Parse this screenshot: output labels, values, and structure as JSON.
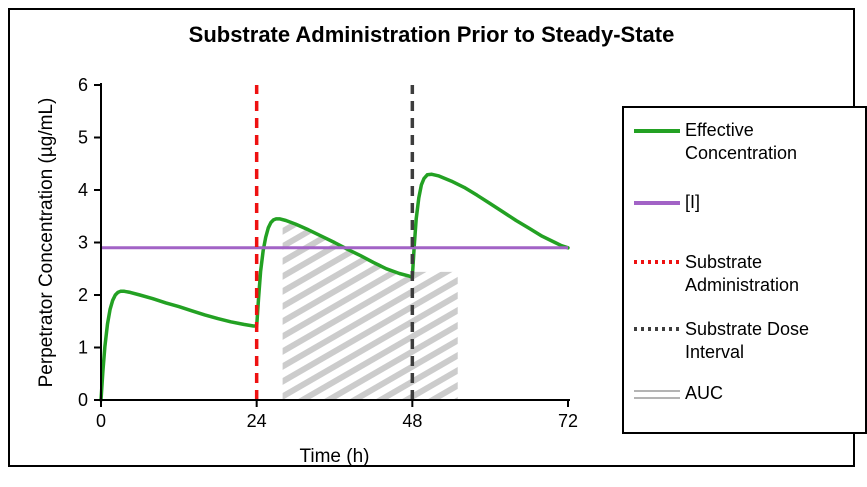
{
  "chart_data": {
    "type": "line",
    "title": "Substrate Administration Prior to Steady-State",
    "xlabel": "Time (h)",
    "ylabel": "Perpetrator Concentration (µg/mL)",
    "xlim": [
      0,
      72
    ],
    "ylim": [
      0,
      6
    ],
    "xticks": [
      0,
      24,
      48,
      72
    ],
    "yticks": [
      0,
      1,
      2,
      3,
      4,
      5,
      6
    ],
    "grid": false,
    "legend_position": "right",
    "series": [
      {
        "name": "Effective Concentration",
        "type": "line",
        "color": "#23a123",
        "width": 3.5,
        "points": [
          [
            0,
            0
          ],
          [
            0.3,
            0.55
          ],
          [
            0.6,
            1.02
          ],
          [
            1,
            1.45
          ],
          [
            1.4,
            1.73
          ],
          [
            1.8,
            1.9
          ],
          [
            2.2,
            2.0
          ],
          [
            2.6,
            2.05
          ],
          [
            3,
            2.07
          ],
          [
            3.6,
            2.07
          ],
          [
            4.5,
            2.05
          ],
          [
            6,
            2.0
          ],
          [
            8,
            1.93
          ],
          [
            10,
            1.85
          ],
          [
            12,
            1.78
          ],
          [
            14,
            1.7
          ],
          [
            16,
            1.62
          ],
          [
            18,
            1.55
          ],
          [
            20,
            1.49
          ],
          [
            22,
            1.44
          ],
          [
            23.5,
            1.41
          ],
          [
            24,
            1.41
          ],
          [
            24.3,
            1.95
          ],
          [
            24.6,
            2.45
          ],
          [
            25,
            2.85
          ],
          [
            25.4,
            3.1
          ],
          [
            25.8,
            3.28
          ],
          [
            26.2,
            3.38
          ],
          [
            26.6,
            3.43
          ],
          [
            27,
            3.45
          ],
          [
            27.6,
            3.45
          ],
          [
            28.5,
            3.42
          ],
          [
            30,
            3.35
          ],
          [
            32,
            3.24
          ],
          [
            34,
            3.12
          ],
          [
            36,
            3.0
          ],
          [
            38,
            2.87
          ],
          [
            40,
            2.75
          ],
          [
            42,
            2.62
          ],
          [
            44,
            2.5
          ],
          [
            46,
            2.41
          ],
          [
            47.5,
            2.36
          ],
          [
            48,
            2.34
          ],
          [
            48.3,
            2.95
          ],
          [
            48.6,
            3.45
          ],
          [
            49,
            3.85
          ],
          [
            49.4,
            4.1
          ],
          [
            49.8,
            4.22
          ],
          [
            50.3,
            4.29
          ],
          [
            51,
            4.3
          ],
          [
            52,
            4.27
          ],
          [
            54,
            4.17
          ],
          [
            56,
            4.05
          ],
          [
            58,
            3.9
          ],
          [
            60,
            3.74
          ],
          [
            62,
            3.58
          ],
          [
            64,
            3.42
          ],
          [
            66,
            3.27
          ],
          [
            68,
            3.12
          ],
          [
            70,
            3.0
          ],
          [
            71,
            2.94
          ],
          [
            72,
            2.9
          ]
        ]
      },
      {
        "name": "[I]",
        "type": "hline",
        "color": "#a263c6",
        "width": 3,
        "y": 2.9,
        "x_from": 0,
        "x_to": 72
      },
      {
        "name": "Substrate Administration",
        "type": "vline",
        "color": "#ee1111",
        "width": 3.5,
        "dash": "10 7",
        "x": 24,
        "y_from": 0,
        "y_to": 6
      },
      {
        "name": "Substrate Dose Interval",
        "type": "vline",
        "color": "#3d3d3d",
        "width": 3.5,
        "dash": "10 7",
        "x": 48,
        "y_from": 0,
        "y_to": 6
      },
      {
        "name": "AUC",
        "type": "hatch_area",
        "color": "#cccccc",
        "hatch": "diagonal-up",
        "points": [
          [
            28,
            0
          ],
          [
            28,
            3.4
          ],
          [
            30,
            3.35
          ],
          [
            34,
            3.12
          ],
          [
            38,
            2.87
          ],
          [
            42,
            2.62
          ],
          [
            46,
            2.41
          ],
          [
            48,
            2.35
          ],
          [
            48.2,
            2.44
          ],
          [
            55,
            2.44
          ],
          [
            55,
            0
          ]
        ]
      }
    ]
  },
  "legend": {
    "items": [
      {
        "label": "Effective Concentration",
        "swatch": "solid",
        "color": "#23a123"
      },
      {
        "label": "[I]",
        "swatch": "solid",
        "color": "#a263c6"
      },
      {
        "label": "Substrate Administration",
        "swatch": "dotted",
        "color": "#ee1111"
      },
      {
        "label": "Substrate Dose Interval",
        "swatch": "dotted",
        "color": "#3d3d3d"
      },
      {
        "label": "AUC",
        "swatch": "double-line",
        "color": "#b4b4b4"
      }
    ]
  },
  "colors": {
    "axis": "#000000",
    "green": "#23a123",
    "purple": "#a263c6",
    "red": "#ee1111",
    "dark": "#3d3d3d",
    "hatch_gray": "#cccccc",
    "auc_swatch_gray": "#b4b4b4"
  }
}
